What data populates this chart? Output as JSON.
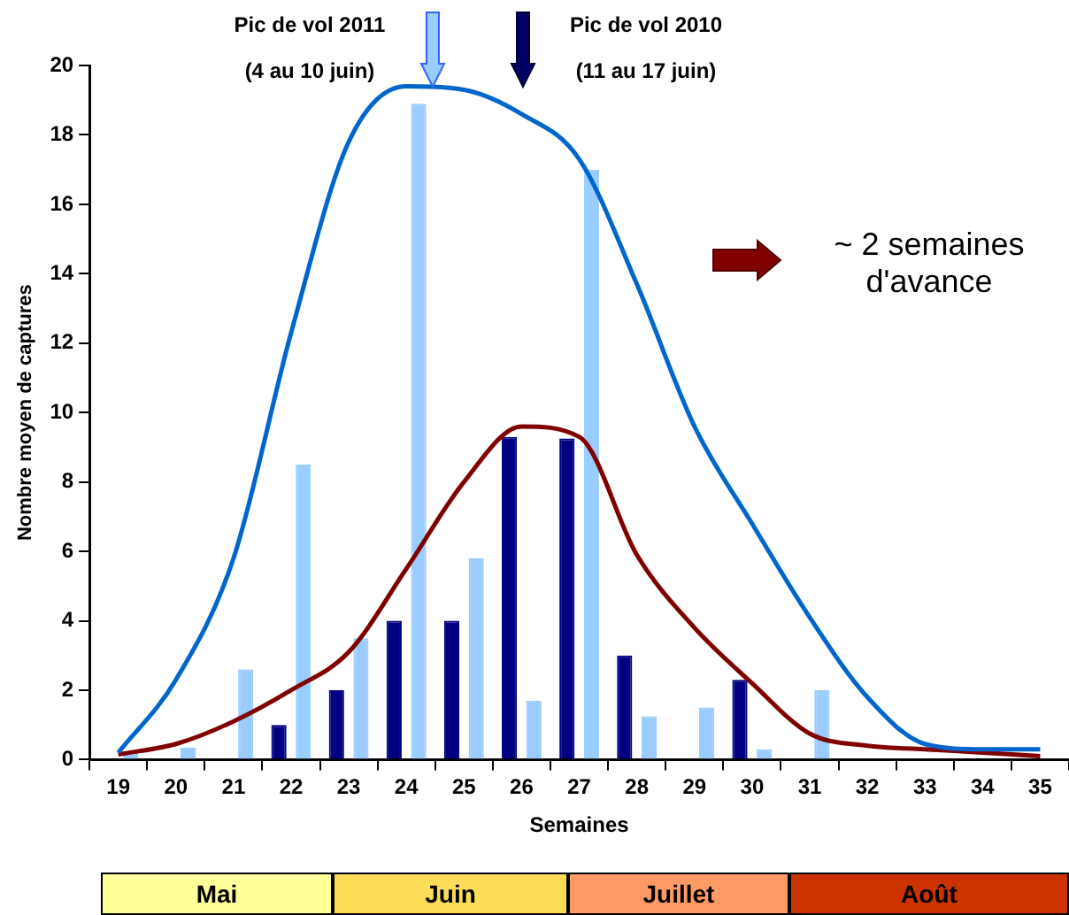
{
  "chart_data": {
    "type": "bar",
    "xlabel": "Semaines",
    "ylabel": "Nombre moyen de captures",
    "categories": [
      "19",
      "20",
      "21",
      "22",
      "23",
      "24",
      "25",
      "26",
      "27",
      "28",
      "29",
      "30",
      "31",
      "32",
      "33",
      "34",
      "35"
    ],
    "series": [
      {
        "color": "#000080",
        "values": [
          0,
          0,
          0,
          1,
          2,
          4,
          4,
          9.3,
          9.25,
          3,
          0,
          2.3,
          0,
          0,
          0,
          0,
          0
        ]
      },
      {
        "color": "#99ccff",
        "values": [
          0.2,
          0.35,
          2.6,
          8.5,
          3.5,
          18.9,
          5.8,
          1.7,
          17,
          1.25,
          1.5,
          0.3,
          2,
          0,
          0,
          0,
          0
        ]
      },
      {
        "type": "line",
        "color": "#0066cc",
        "values": [
          0.2,
          2.3,
          5.8,
          12.3,
          17.8,
          19.4,
          19.3,
          18.6,
          17.3,
          13.7,
          9.6,
          6.8,
          4.1,
          1.8,
          0.45,
          0.3,
          0.3
        ]
      },
      {
        "type": "line",
        "color": "#800000",
        "values": [
          0.15,
          0.45,
          1.1,
          2,
          3.1,
          5.5,
          8,
          9.6,
          9.3,
          5.9,
          3.8,
          2.2,
          0.75,
          0.4,
          0.3,
          0.2,
          0.1
        ]
      }
    ],
    "ylim": [
      0,
      20
    ],
    "yticks": [
      0,
      2,
      4,
      6,
      8,
      10,
      12,
      14,
      16,
      18,
      20
    ],
    "grid": false,
    "legend": false,
    "annotations": [
      "Pic de vol 2011",
      "(4 au 10 juin)",
      "Pic de vol 2010",
      "(11 au 17 juin)",
      "~ 2 semaines d'avance",
      "Mai",
      "Juin",
      "Juillet",
      "Août"
    ]
  }
}
